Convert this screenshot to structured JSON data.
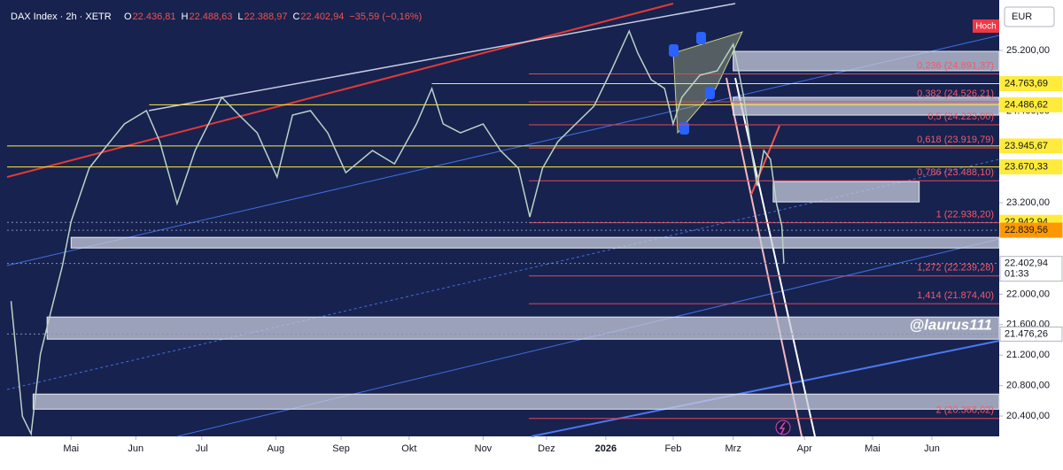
{
  "header": {
    "symbol": "DAX Index · 2h · XETR",
    "fields": [
      {
        "label": "O",
        "value": "22.436,81"
      },
      {
        "label": "H",
        "value": "22.488,63"
      },
      {
        "label": "L",
        "value": "22.388,97"
      },
      {
        "label": "C",
        "value": "22.402,94"
      }
    ],
    "change": "−35,59 (−0,16%)"
  },
  "chart_data": {
    "type": "line",
    "color": "#b9d3c4",
    "currency": "EUR",
    "high_label": "Hoch",
    "watermark": "@laurus111",
    "xlim": [
      -0.96,
      13.92
    ],
    "ylim": [
      20133,
      25746
    ],
    "xticks": [
      {
        "value": 0,
        "label": "Mai"
      },
      {
        "value": 0.97,
        "label": "Jun"
      },
      {
        "value": 1.96,
        "label": "Jul"
      },
      {
        "value": 3.07,
        "label": "Aug"
      },
      {
        "value": 4.05,
        "label": "Sep"
      },
      {
        "value": 5.07,
        "label": "Okt"
      },
      {
        "value": 6.18,
        "label": "Nov"
      },
      {
        "value": 7.13,
        "label": "Dez"
      },
      {
        "value": 8.02,
        "label": "2026"
      },
      {
        "value": 9.03,
        "label": "Feb"
      },
      {
        "value": 9.93,
        "label": "Mrz"
      },
      {
        "value": 11,
        "label": "Apr"
      },
      {
        "value": 12.02,
        "label": "Mai"
      },
      {
        "value": 12.91,
        "label": "Jun"
      }
    ],
    "yticks": [
      {
        "value": 25200,
        "label": "25.200,00"
      },
      {
        "value": 24400,
        "label": "24.400,00"
      },
      {
        "value": 23200,
        "label": "23.200,00"
      },
      {
        "value": 22000,
        "label": "22.000,00"
      },
      {
        "value": 21600,
        "label": "21.600,00"
      },
      {
        "value": 21200,
        "label": "21.200,00"
      },
      {
        "value": 20800,
        "label": "20.800,00"
      },
      {
        "value": 20400,
        "label": "20.400,00"
      }
    ],
    "x": [
      -0.9,
      -0.73,
      -0.6,
      -0.46,
      -0.33,
      -0.13,
      0,
      0.27,
      0.53,
      0.8,
      1.13,
      1.33,
      1.59,
      1.86,
      2.26,
      2.52,
      2.79,
      3.09,
      3.32,
      3.59,
      3.85,
      4.12,
      4.52,
      4.85,
      5.18,
      5.41,
      5.58,
      5.84,
      6.18,
      6.44,
      6.71,
      6.88,
      7.07,
      7.3,
      7.57,
      7.84,
      8.1,
      8.37,
      8.5,
      8.7,
      8.9,
      9.03,
      9.16,
      9.43,
      9.69,
      9.93,
      10.09,
      10.2,
      10.29,
      10.39,
      10.49,
      10.58,
      10.66,
      10.69
    ],
    "values": [
      21909,
      20397,
      20164,
      21211,
      21676,
      22374,
      22955,
      23653,
      23944,
      24235,
      24409,
      24002,
      23188,
      23886,
      24584,
      24351,
      24118,
      23537,
      24351,
      24409,
      24118,
      23595,
      23886,
      23711,
      24235,
      24700,
      24235,
      24118,
      24235,
      23886,
      23653,
      23014,
      23653,
      24002,
      24235,
      24467,
      24933,
      25456,
      25165,
      24816,
      24700,
      24235,
      24584,
      24874,
      24933,
      25281,
      24584,
      23886,
      23421,
      23886,
      23770,
      23188,
      22897,
      22402.94
    ],
    "fib_levels": [
      {
        "value": 24891.37,
        "label": "0,236 (24.891,37)"
      },
      {
        "value": 24526.21,
        "label": "0,382 (24.526,21)"
      },
      {
        "value": 24223.0,
        "label": "0,5 (24.223,00)"
      },
      {
        "value": 23919.79,
        "label": "0,618 (23.919,79)"
      },
      {
        "value": 23488.1,
        "label": "0,786 (23.488,10)"
      },
      {
        "value": 22938.2,
        "label": "1 (22.938,20)"
      },
      {
        "value": 22239.28,
        "label": "1,272 (22.239,28)"
      },
      {
        "value": 21874.4,
        "label": "1,414 (21.874,40)"
      },
      {
        "value": 20368.02,
        "label": "2 (20.368,02)"
      }
    ],
    "zones": [
      {
        "y": [
          24933,
          25188
        ],
        "x": [
          9.93,
          13.92
        ]
      },
      {
        "y": [
          24351,
          24584
        ],
        "x": [
          9.93,
          13.92
        ]
      },
      {
        "y": [
          23211,
          23479
        ],
        "x": [
          10.53,
          12.72
        ]
      },
      {
        "y": [
          22606,
          22746
        ],
        "x": [
          0,
          13.92
        ]
      },
      {
        "y": [
          21409,
          21700
        ],
        "x": [
          -0.36,
          13.92
        ]
      },
      {
        "y": [
          20490,
          20688
        ],
        "x": [
          -0.57,
          13.92
        ]
      }
    ],
    "badges": [
      {
        "value": 24763.69,
        "label": "24.763,69",
        "color": "#ffeb3b",
        "from": 5.41
      },
      {
        "value": 24486.62,
        "label": "24.486,62",
        "color": "#ffeb3b",
        "from": 1.17
      },
      {
        "value": 23945.67,
        "label": "23.945,67",
        "color": "#ffeb3b",
        "from": -0.96
      },
      {
        "value": 23670.33,
        "label": "23.670,33",
        "color": "#ffeb3b",
        "from": -0.96
      },
      {
        "value": 22942.94,
        "label": "22.942,94",
        "color": "#ffeb3b"
      },
      {
        "value": 22839.56,
        "label": "22.839,56",
        "color": "#ff9800"
      },
      {
        "value": 22402.94,
        "label": "22.402,94",
        "color": "#ffffff",
        "sub": "01:33"
      },
      {
        "value": 21476.26,
        "label": "21.476,26",
        "color": "#ffffff"
      }
    ]
  }
}
